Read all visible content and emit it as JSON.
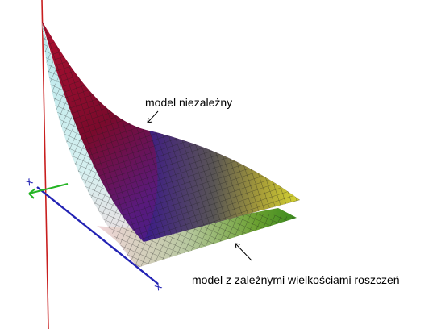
{
  "labels": {
    "independent": "model niezależny",
    "dependent": "model z zależnymi wielkościami roszczeń"
  },
  "axes": {
    "vertical_color": "#c81e1e",
    "horizontal_color": "#2323b4",
    "depth_color": "#23b423",
    "tick_marks": [
      "x",
      "x"
    ]
  },
  "surfaces": {
    "independent": {
      "name_ref": "labels.independent",
      "colormap": [
        "#7a0a2a",
        "#5a1a8c",
        "#1a1aa0",
        "#d8d820"
      ]
    },
    "dependent": {
      "name_ref": "labels.dependent",
      "colormap": [
        "#cfeef0",
        "#f2d8dc",
        "#6aa02a",
        "#3c8a20"
      ]
    }
  },
  "colors": {
    "background": "#ffffff",
    "grid_line": "#1a1a1a"
  }
}
